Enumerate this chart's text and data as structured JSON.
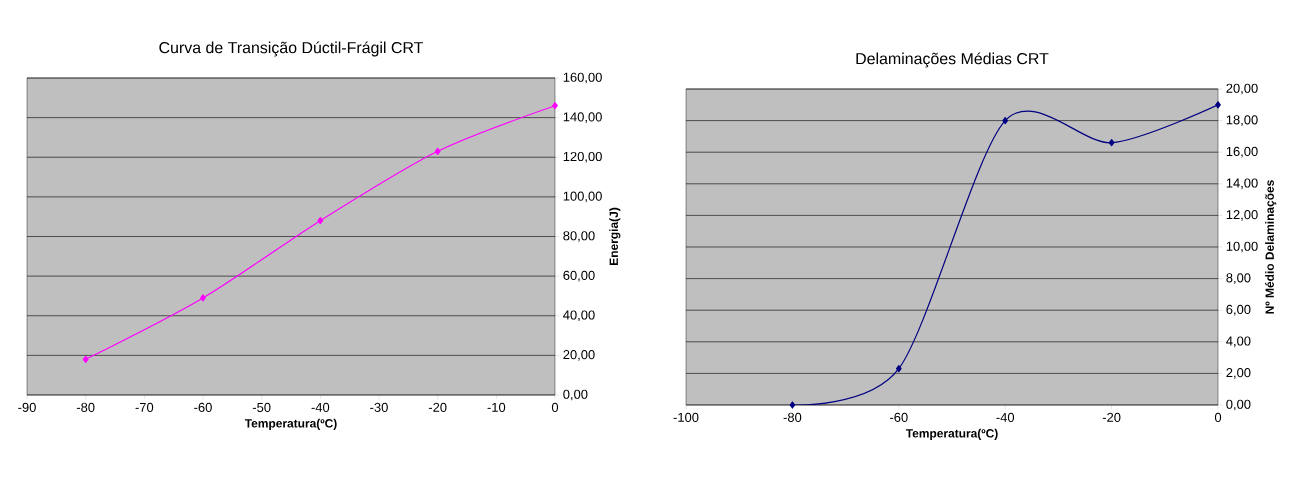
{
  "chart_data": [
    {
      "type": "line",
      "title": "Curva de Transição Dúctil-Frágil CRT",
      "xlabel": "Temperatura(ºC)",
      "ylabel": "Energia(J)",
      "x": [
        -80,
        -60,
        -40,
        -20,
        0
      ],
      "series": [
        {
          "color": "#ff00ff",
          "values": [
            18,
            49,
            88,
            123,
            146
          ]
        }
      ],
      "xlim": [
        -90,
        0
      ],
      "xticks": [
        -90,
        -80,
        -70,
        -60,
        -50,
        -40,
        -30,
        -20,
        -10,
        0
      ],
      "ylim": [
        0,
        160
      ],
      "yticks": [
        {
          "value": 0,
          "label": "0,00"
        },
        {
          "value": 20,
          "label": "20,00"
        },
        {
          "value": 40,
          "label": "40,00"
        },
        {
          "value": 60,
          "label": "60,00"
        },
        {
          "value": 80,
          "label": "80,00"
        },
        {
          "value": 100,
          "label": "100,00"
        },
        {
          "value": 120,
          "label": "120,00"
        },
        {
          "value": 140,
          "label": "140,00"
        },
        {
          "value": 160,
          "label": "160,00"
        }
      ],
      "grid": "y",
      "marker": "diamond",
      "line_style": "solid"
    },
    {
      "type": "line",
      "title": "Delaminações Médias CRT",
      "xlabel": "Temperatura(ºC)",
      "ylabel": "Nº Médio Delaminações",
      "x": [
        -80,
        -60,
        -40,
        -20,
        0
      ],
      "series": [
        {
          "color": "#000080",
          "values": [
            0,
            2.3,
            18,
            16.6,
            19
          ]
        }
      ],
      "xlim": [
        -100,
        0
      ],
      "xticks": [
        -100,
        -80,
        -60,
        -40,
        -20,
        0
      ],
      "ylim": [
        0,
        20
      ],
      "yticks": [
        {
          "value": 0,
          "label": "0,00"
        },
        {
          "value": 2,
          "label": "2,00"
        },
        {
          "value": 4,
          "label": "4,00"
        },
        {
          "value": 6,
          "label": "6,00"
        },
        {
          "value": 8,
          "label": "8,00"
        },
        {
          "value": 10,
          "label": "10,00"
        },
        {
          "value": 12,
          "label": "12,00"
        },
        {
          "value": 14,
          "label": "14,00"
        },
        {
          "value": 16,
          "label": "16,00"
        },
        {
          "value": 18,
          "label": "18,00"
        },
        {
          "value": 20,
          "label": "20,00"
        }
      ],
      "grid": "y",
      "marker": "diamond",
      "line_style": "solid"
    }
  ]
}
